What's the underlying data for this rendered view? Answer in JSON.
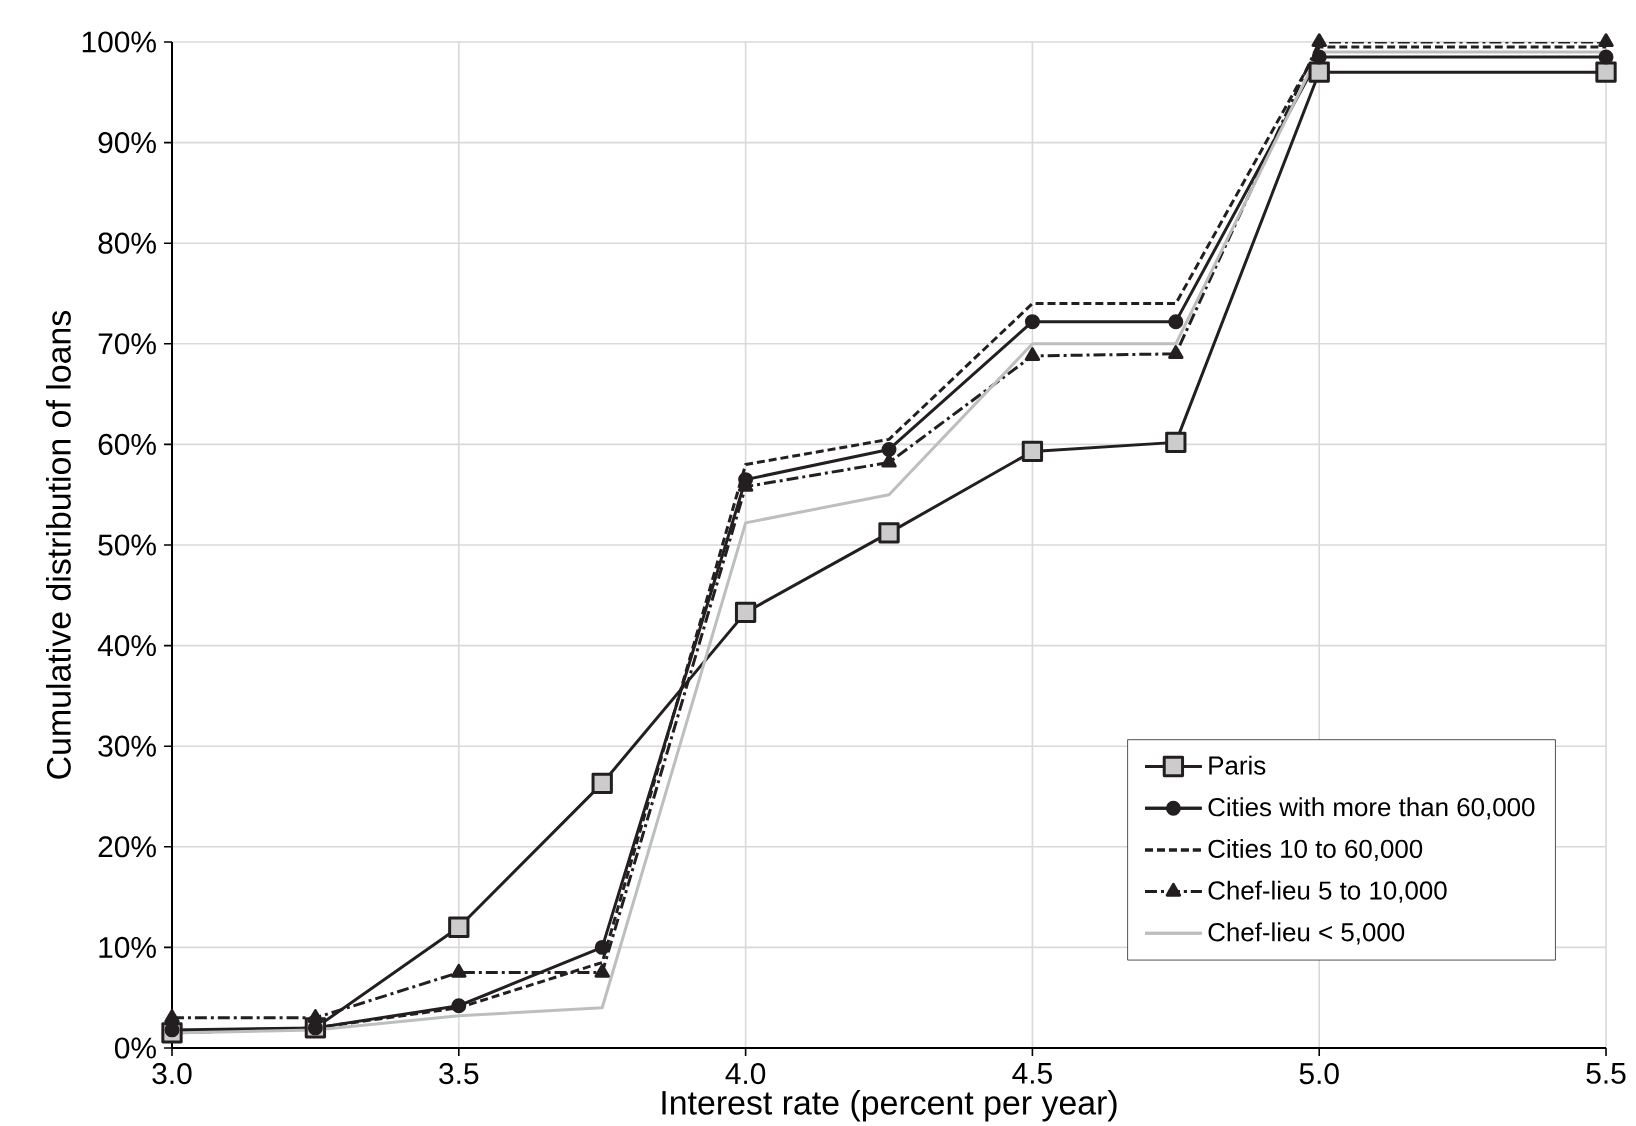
{
  "chart_data": {
    "type": "line",
    "xlabel": "Interest rate (percent per year)",
    "ylabel": "Cumulative distribution of loans",
    "x": [
      3.0,
      3.25,
      3.5,
      3.75,
      4.0,
      4.25,
      4.5,
      4.75,
      5.0,
      5.5
    ],
    "series": [
      {
        "name": "Paris",
        "color": "#231f20",
        "marker": "square",
        "line_style": "solid",
        "values": [
          1.5,
          2,
          12,
          26.3,
          43.3,
          51.2,
          59.3,
          60.2,
          97,
          97
        ]
      },
      {
        "name": "Cities with more than 60,000",
        "color": "#231f20",
        "marker": "circle",
        "line_style": "solid",
        "values": [
          1.8,
          2,
          4.2,
          10,
          56.5,
          59.5,
          72.2,
          72.2,
          98.5,
          98.5
        ]
      },
      {
        "name": "Cities 10 to 60,000",
        "color": "#231f20",
        "marker": "none",
        "line_style": "dashed",
        "values": [
          1.5,
          2,
          4,
          8.5,
          58,
          60.5,
          74,
          74,
          99.5,
          99.5
        ]
      },
      {
        "name": "Chef-lieu 5 to 10,000",
        "color": "#231f20",
        "marker": "triangle",
        "line_style": "dashdot",
        "values": [
          3,
          3,
          7.5,
          7.5,
          55.8,
          58.2,
          68.8,
          69,
          100,
          100
        ]
      },
      {
        "name": "Chef-lieu < 5,000",
        "color": "#bcbec0",
        "marker": "none",
        "line_style": "solid",
        "values": [
          1.5,
          1.8,
          3.2,
          4,
          52.2,
          55,
          70,
          70,
          99,
          99
        ]
      }
    ],
    "xlim": [
      3.0,
      5.5
    ],
    "xticks": [
      {
        "value": 3.0,
        "label": "3.0"
      },
      {
        "value": 3.5,
        "label": "3.5"
      },
      {
        "value": 4.0,
        "label": "4.0"
      },
      {
        "value": 4.5,
        "label": "4.5"
      },
      {
        "value": 5.0,
        "label": "5.0"
      },
      {
        "value": 5.5,
        "label": "5.5"
      }
    ],
    "ylim": [
      0,
      100
    ],
    "yticks": [
      {
        "value": 0,
        "label": "0%"
      },
      {
        "value": 10,
        "label": "10%"
      },
      {
        "value": 20,
        "label": "20%"
      },
      {
        "value": 30,
        "label": "30%"
      },
      {
        "value": 40,
        "label": "40%"
      },
      {
        "value": 50,
        "label": "50%"
      },
      {
        "value": 60,
        "label": "60%"
      },
      {
        "value": 70,
        "label": "70%"
      },
      {
        "value": 80,
        "label": "80%"
      },
      {
        "value": 90,
        "label": "90%"
      },
      {
        "value": 100,
        "label": "100%"
      }
    ],
    "grid": true,
    "legend": "bottom right"
  }
}
